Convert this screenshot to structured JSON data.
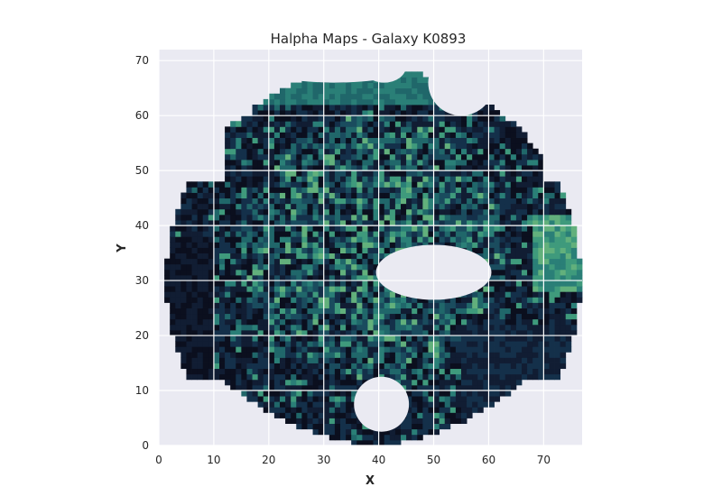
{
  "chart_data": {
    "type": "heatmap",
    "title": "Halpha Maps - Galaxy K0893",
    "xlabel": "X",
    "ylabel": "Y",
    "xlim": [
      0,
      77
    ],
    "ylim": [
      0,
      72
    ],
    "xticks": [
      "0",
      "10",
      "20",
      "30",
      "40",
      "50",
      "60",
      "70"
    ],
    "yticks": [
      "0",
      "10",
      "20",
      "30",
      "40",
      "50",
      "60",
      "70"
    ],
    "grid": true,
    "colormap": [
      "#0b0f1e",
      "#111d33",
      "#14304a",
      "#1a4c5e",
      "#20676a",
      "#2a7f77",
      "#3f9a7c",
      "#62b07c"
    ],
    "background_color": "#eaeaf2",
    "grid_color": "#ffffff"
  }
}
